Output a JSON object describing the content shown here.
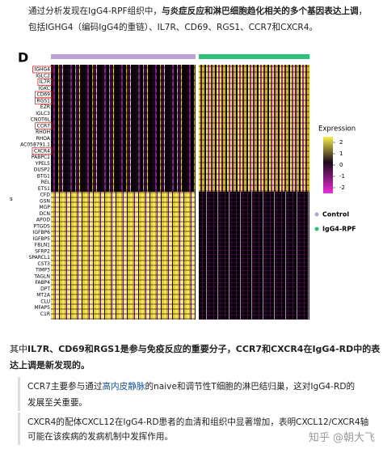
{
  "intro": {
    "line1": [
      "通过分析发现在IgG4-RPF组织中，",
      "与炎症反应和淋巴细胞趋化相关的多个基因表达上调",
      "，"
    ],
    "line2": "包括IGHG4（编码IgG4的重链）、IL7R、CD69、RGS1、CCR7和CXCR4。"
  },
  "figure": {
    "panel_label": "D",
    "side_label": "s",
    "genes": [
      {
        "name": "IGHG4",
        "boxed": true
      },
      {
        "name": "IGLC2",
        "boxed": false
      },
      {
        "name": "IL7R",
        "boxed": true
      },
      {
        "name": "IGKC",
        "boxed": false
      },
      {
        "name": "CD69",
        "boxed": true
      },
      {
        "name": "RGS1",
        "boxed": true
      },
      {
        "name": "EZR",
        "boxed": false
      },
      {
        "name": "IGLC3",
        "boxed": false
      },
      {
        "name": "CNOT6L",
        "boxed": false
      },
      {
        "name": "CCR7",
        "boxed": true
      },
      {
        "name": "RHOH",
        "boxed": false
      },
      {
        "name": "RHOA",
        "boxed": false
      },
      {
        "name": "AC058791.1",
        "boxed": false
      },
      {
        "name": "CXCR4",
        "boxed": true
      },
      {
        "name": "PABPC1",
        "boxed": false
      },
      {
        "name": "YPEL5",
        "boxed": false
      },
      {
        "name": "DUSP2",
        "boxed": false
      },
      {
        "name": "BTG1",
        "boxed": false
      },
      {
        "name": "REL",
        "boxed": false
      },
      {
        "name": "ETS1",
        "boxed": false
      },
      {
        "name": "CFD",
        "boxed": false
      },
      {
        "name": "GSN",
        "boxed": false
      },
      {
        "name": "MGP",
        "boxed": false
      },
      {
        "name": "DCN",
        "boxed": false
      },
      {
        "name": "APOD",
        "boxed": false
      },
      {
        "name": "PTGDS",
        "boxed": false
      },
      {
        "name": "IGFBP6",
        "boxed": false
      },
      {
        "name": "IGFBP5",
        "boxed": false
      },
      {
        "name": "FBLN1",
        "boxed": false
      },
      {
        "name": "SFRP2",
        "boxed": false
      },
      {
        "name": "SPARCL1",
        "boxed": false
      },
      {
        "name": "CST3",
        "boxed": false
      },
      {
        "name": "TIMP3",
        "boxed": false
      },
      {
        "name": "TAGLN",
        "boxed": false
      },
      {
        "name": "FABP4",
        "boxed": false
      },
      {
        "name": "DPT",
        "boxed": false
      },
      {
        "name": "MT2A",
        "boxed": false
      },
      {
        "name": "CLU",
        "boxed": false
      },
      {
        "name": "MFAP5",
        "boxed": false
      },
      {
        "name": "C1R",
        "boxed": false
      }
    ],
    "legend": {
      "title": "Expression",
      "ticks": [
        2,
        1,
        0,
        -1,
        -2
      ],
      "range": [
        -2.5,
        2.5
      ],
      "groups": [
        {
          "name": "Control",
          "color": "#b9a3d6"
        },
        {
          "name": "IgG4-RPF",
          "color": "#2fbf7a"
        }
      ]
    }
  },
  "summary": {
    "line1": [
      "其中",
      "IL7R、CD69和RGS1是参与免疫反应的重要分子，CCR7和CXCR4在IgG4-RD中的表"
    ],
    "line2": "达上调是新发现的。"
  },
  "quotes": [
    {
      "line1": [
        "CCR7主要参与通过",
        "高内皮静脉",
        "的naive和调节性T细胞的淋巴结归巢，这对IgG4-RD的"
      ],
      "line2": "发展至关重要。"
    },
    {
      "line1": "CXCR4的配体CXCL12在IgG4-RD患者的血清和组织中显著增加，表明CXCL12/CXCR4轴",
      "line2": "可能在该疾病的发病机制中发挥作用。"
    }
  ],
  "watermark": "知乎 @朝大飞"
}
